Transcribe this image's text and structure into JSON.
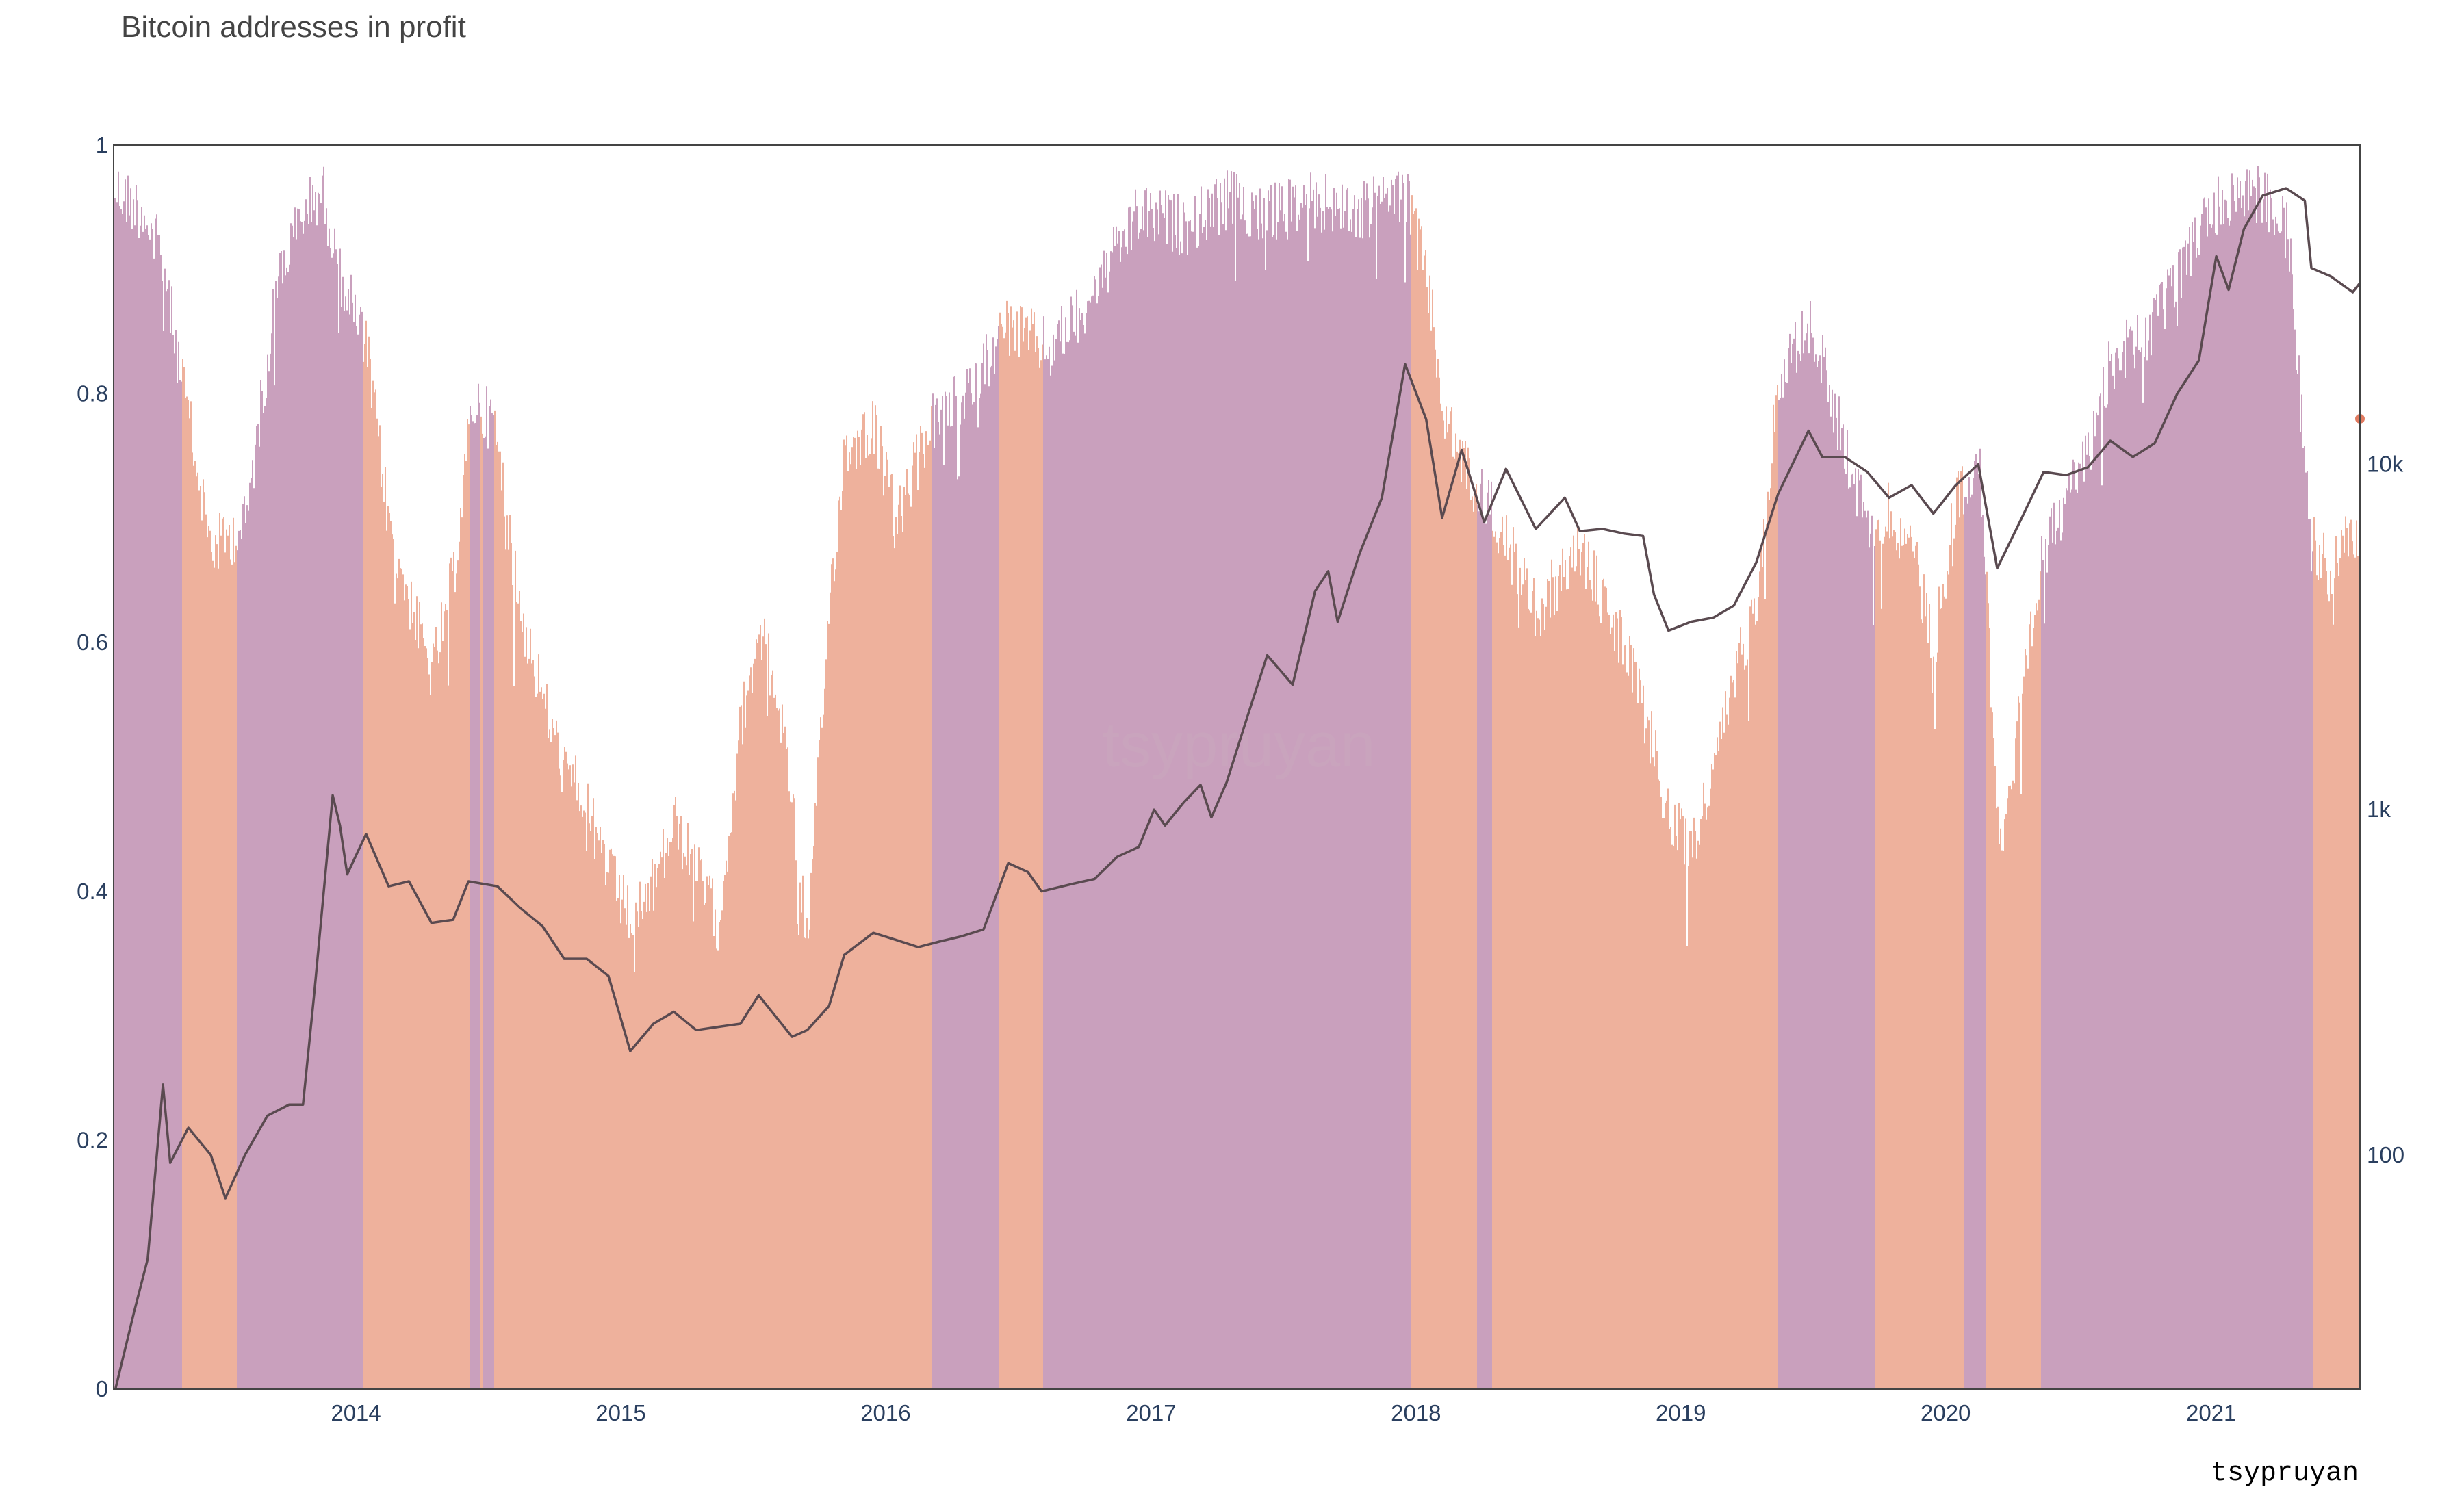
{
  "chart_data": {
    "type": "area",
    "title": "Bitcoin addresses in profit",
    "watermark": "tsypruyan",
    "credit": "tsypruyan",
    "xlabel": "",
    "ylabel": "",
    "x_range": [
      "2013-02-01",
      "2021-07-25"
    ],
    "x_ticks": [
      "2014",
      "2015",
      "2016",
      "2017",
      "2018",
      "2019",
      "2020",
      "2021"
    ],
    "y_left": {
      "range": [
        0,
        1
      ],
      "ticks": [
        "0",
        "0.2",
        "0.4",
        "0.6",
        "0.8",
        "1"
      ]
    },
    "y_right": {
      "scale": "log",
      "range": [
        21,
        84000
      ],
      "ticks": [
        "100",
        "1k",
        "10k"
      ]
    },
    "colors": {
      "above": "#c9a0bd",
      "below": "#eeb19c",
      "price_line": "#5a4a50",
      "dot": "#e07a5f",
      "frame": "#444444"
    },
    "share_in_profit": {
      "dates": [
        "2013-02-01",
        "2013-03-15",
        "2013-04-10",
        "2013-05-01",
        "2013-06-15",
        "2013-08-01",
        "2013-09-15",
        "2013-10-20",
        "2013-11-15",
        "2013-12-05",
        "2014-01-15",
        "2014-02-15",
        "2014-03-15",
        "2014-04-15",
        "2014-05-15",
        "2014-06-10",
        "2014-07-10",
        "2014-08-15",
        "2014-09-15",
        "2014-10-15",
        "2014-11-15",
        "2014-12-15",
        "2015-01-15",
        "2015-02-15",
        "2015-03-15",
        "2015-04-15",
        "2015-05-15",
        "2015-06-15",
        "2015-07-10",
        "2015-08-15",
        "2015-09-15",
        "2015-10-15",
        "2015-11-05",
        "2015-12-15",
        "2016-01-15",
        "2016-03-01",
        "2016-04-15",
        "2016-06-15",
        "2016-08-15",
        "2016-10-15",
        "2016-12-15",
        "2017-02-15",
        "2017-04-15",
        "2017-06-15",
        "2017-08-15",
        "2017-10-15",
        "2017-12-15",
        "2018-01-15",
        "2018-02-10",
        "2018-03-15",
        "2018-04-25",
        "2018-06-15",
        "2018-08-15",
        "2018-10-15",
        "2018-11-25",
        "2018-12-15",
        "2019-01-15",
        "2019-02-15",
        "2019-03-15",
        "2019-04-15",
        "2019-05-15",
        "2019-06-25",
        "2019-07-15",
        "2019-08-15",
        "2019-09-15",
        "2019-10-15",
        "2019-11-15",
        "2019-12-15",
        "2020-01-15",
        "2020-02-15",
        "2020-03-15",
        "2020-04-15",
        "2020-05-15",
        "2020-06-15",
        "2020-07-15",
        "2020-08-15",
        "2020-10-15",
        "2020-12-15",
        "2021-01-15",
        "2021-02-15",
        "2021-03-15",
        "2021-04-15",
        "2021-05-10",
        "2021-05-25",
        "2021-06-15",
        "2021-07-15",
        "2021-07-25"
      ],
      "values": [
        0.99,
        0.97,
        0.93,
        0.85,
        0.7,
        0.72,
        0.92,
        0.97,
        0.99,
        0.93,
        0.86,
        0.72,
        0.66,
        0.6,
        0.68,
        0.82,
        0.8,
        0.65,
        0.58,
        0.52,
        0.5,
        0.44,
        0.4,
        0.43,
        0.48,
        0.44,
        0.4,
        0.56,
        0.64,
        0.55,
        0.38,
        0.66,
        0.78,
        0.8,
        0.72,
        0.8,
        0.82,
        0.88,
        0.86,
        0.91,
        0.97,
        0.96,
        0.98,
        0.97,
        0.98,
        0.97,
        0.99,
        0.92,
        0.8,
        0.76,
        0.72,
        0.65,
        0.7,
        0.62,
        0.54,
        0.48,
        0.46,
        0.52,
        0.6,
        0.66,
        0.84,
        0.88,
        0.85,
        0.78,
        0.72,
        0.73,
        0.7,
        0.62,
        0.74,
        0.78,
        0.46,
        0.58,
        0.7,
        0.74,
        0.78,
        0.85,
        0.88,
        0.96,
        0.98,
        0.99,
        0.98,
        0.97,
        0.76,
        0.7,
        0.68,
        0.72,
        0.7
      ]
    },
    "above_periods": [
      [
        "2013-02-01",
        "2013-05-05"
      ],
      [
        "2013-07-20",
        "2014-01-10"
      ],
      [
        "2014-06-05",
        "2014-06-20"
      ],
      [
        "2014-06-25",
        "2014-07-10"
      ],
      [
        "2016-03-05",
        "2016-06-05"
      ],
      [
        "2016-08-05",
        "2017-12-25"
      ],
      [
        "2018-03-25",
        "2018-04-15"
      ],
      [
        "2019-05-15",
        "2019-09-25"
      ],
      [
        "2020-01-25",
        "2020-02-25"
      ],
      [
        "2020-05-10",
        "2021-05-20"
      ]
    ],
    "price_usd": {
      "dates": [
        "2013-02-01",
        "2013-03-01",
        "2013-03-20",
        "2013-04-10",
        "2013-04-20",
        "2013-05-15",
        "2013-06-15",
        "2013-07-05",
        "2013-08-01",
        "2013-09-01",
        "2013-10-01",
        "2013-10-20",
        "2013-11-05",
        "2013-11-30",
        "2013-12-10",
        "2013-12-20",
        "2014-01-15",
        "2014-02-15",
        "2014-03-15",
        "2014-04-15",
        "2014-05-15",
        "2014-06-05",
        "2014-07-15",
        "2014-08-15",
        "2014-09-15",
        "2014-10-15",
        "2014-11-15",
        "2014-12-15",
        "2015-01-14",
        "2015-02-15",
        "2015-03-15",
        "2015-04-15",
        "2015-05-15",
        "2015-06-15",
        "2015-07-10",
        "2015-08-25",
        "2015-09-15",
        "2015-10-15",
        "2015-11-05",
        "2015-12-15",
        "2016-01-15",
        "2016-02-15",
        "2016-03-15",
        "2016-04-15",
        "2016-05-15",
        "2016-06-18",
        "2016-07-15",
        "2016-08-03",
        "2016-09-15",
        "2016-10-15",
        "2016-11-15",
        "2016-12-15",
        "2017-01-05",
        "2017-01-20",
        "2017-02-15",
        "2017-03-10",
        "2017-03-25",
        "2017-04-15",
        "2017-05-15",
        "2017-06-10",
        "2017-07-15",
        "2017-08-15",
        "2017-09-02",
        "2017-09-15",
        "2017-10-15",
        "2017-11-15",
        "2017-12-17",
        "2018-01-15",
        "2018-02-06",
        "2018-03-05",
        "2018-04-05",
        "2018-05-05",
        "2018-06-15",
        "2018-07-25",
        "2018-08-15",
        "2018-09-15",
        "2018-10-15",
        "2018-11-10",
        "2018-11-25",
        "2018-12-15",
        "2019-01-15",
        "2019-02-15",
        "2019-03-15",
        "2019-04-15",
        "2019-05-15",
        "2019-06-26",
        "2019-07-15",
        "2019-08-15",
        "2019-09-15",
        "2019-10-15",
        "2019-11-15",
        "2019-12-15",
        "2020-01-15",
        "2020-02-15",
        "2020-03-12",
        "2020-04-15",
        "2020-05-15",
        "2020-06-15",
        "2020-07-15",
        "2020-08-15",
        "2020-09-15",
        "2020-10-15",
        "2020-11-15",
        "2020-12-15",
        "2021-01-08",
        "2021-01-25",
        "2021-02-15",
        "2021-03-13",
        "2021-04-14",
        "2021-05-10",
        "2021-05-19",
        "2021-06-15",
        "2021-07-15",
        "2021-07-25"
      ],
      "values": [
        20,
        35,
        50,
        160,
        95,
        120,
        100,
        75,
        100,
        130,
        140,
        140,
        300,
        1100,
        900,
        650,
        850,
        600,
        620,
        470,
        480,
        620,
        600,
        520,
        460,
        370,
        370,
        330,
        200,
        240,
        260,
        230,
        235,
        240,
        290,
        220,
        230,
        270,
        380,
        440,
        420,
        400,
        415,
        430,
        450,
        700,
        660,
        580,
        610,
        630,
        730,
        780,
        1000,
        900,
        1050,
        1180,
        950,
        1200,
        1900,
        2800,
        2300,
        4300,
        4900,
        3500,
        5500,
        8000,
        19500,
        13500,
        7000,
        11000,
        6800,
        9700,
        6500,
        8000,
        6400,
        6500,
        6300,
        6200,
        4200,
        3300,
        3500,
        3600,
        3900,
        5200,
        8200,
        12500,
        10500,
        10500,
        9500,
        8000,
        8700,
        7200,
        8700,
        10000,
        5000,
        7000,
        9500,
        9300,
        9800,
        11700,
        10500,
        11500,
        16000,
        20000,
        40000,
        32000,
        48000,
        60000,
        63000,
        58000,
        37000,
        35000,
        31500,
        33500
      ]
    }
  }
}
